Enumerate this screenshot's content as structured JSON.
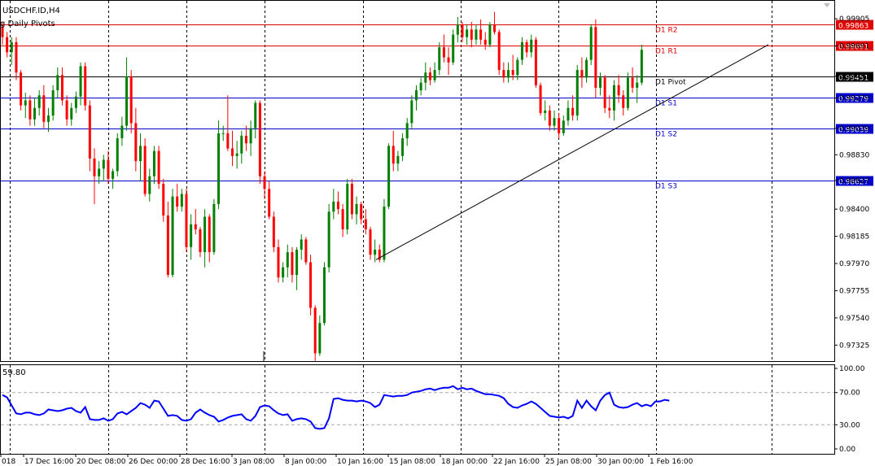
{
  "window": {
    "symbol_title": "USDCHF.ID,H4",
    "indicator_title": "g Daily Pivots",
    "osc_value_label": "59.80"
  },
  "colors": {
    "bull": "#008000",
    "bear": "#ff0000",
    "resistance": "#e00000",
    "support": "#0000cc",
    "pivot": "#000000",
    "oscillator": "#0000ff",
    "grid": "#000000",
    "osc_level": "#aaaaaa"
  },
  "price_axis": {
    "ticks": [
      "0.99905",
      "0.99691",
      "0.99451",
      "0.99279",
      "0.99039",
      "0.98830",
      "0.98627",
      "0.98400",
      "0.98185",
      "0.97970",
      "0.97755",
      "0.97540",
      "0.97325"
    ]
  },
  "osc_axis": {
    "ticks": [
      "100.00",
      "70.00",
      "30.00",
      "0.00"
    ],
    "levels": [
      70,
      30
    ]
  },
  "time_axis": {
    "labels": [
      "018",
      "17 Dec 16:00",
      "20 Dec 08:00",
      "26 Dec 00:00",
      "28 Dec 16:00",
      "3 Jan 08:00",
      "8 Jan 00:00",
      "10 Jan 16:00",
      "15 Jan 08:00",
      "18 Jan 00:00",
      "22 Jan 16:00",
      "25 Jan 08:00",
      "30 Jan 00:00",
      "1 Feb 16:00"
    ]
  },
  "pivot_levels": [
    {
      "name": "D1 R2",
      "value": 0.99863,
      "label": "0.99863",
      "kind": "resistance"
    },
    {
      "name": "D1 R1",
      "value": 0.99691,
      "label": "0.99691",
      "kind": "resistance"
    },
    {
      "name": "D1 Pivot",
      "value": 0.99451,
      "label": "0.99451",
      "kind": "pivot"
    },
    {
      "name": "D1 S1",
      "value": 0.99279,
      "label": "0.99279",
      "kind": "support"
    },
    {
      "name": "D1 S2",
      "value": 0.99039,
      "label": "0.99039",
      "kind": "support"
    },
    {
      "name": "D1 S3",
      "value": 0.98627,
      "label": "0.98627",
      "kind": "support"
    }
  ],
  "trendline": {
    "start_price": 0.98,
    "end_price": 0.997
  },
  "chart_data": {
    "type": "candlestick",
    "title": "USDCHF.ID,H4",
    "ylim": [
      0.97205,
      1.00015
    ],
    "candles": [
      [
        0.99845,
        0.9988,
        0.997,
        0.9976
      ],
      [
        0.9976,
        0.998,
        0.996,
        0.9964
      ],
      [
        0.9964,
        0.9976,
        0.9954,
        0.9972
      ],
      [
        0.9972,
        0.9976,
        0.9942,
        0.9948
      ],
      [
        0.9948,
        0.995,
        0.9918,
        0.9922
      ],
      [
        0.9922,
        0.9932,
        0.9912,
        0.9926
      ],
      [
        0.9926,
        0.993,
        0.9906,
        0.9911
      ],
      [
        0.9911,
        0.9928,
        0.9906,
        0.992
      ],
      [
        0.992,
        0.9934,
        0.9914,
        0.993
      ],
      [
        0.993,
        0.9938,
        0.9904,
        0.9909
      ],
      [
        0.9909,
        0.992,
        0.9901,
        0.9914
      ],
      [
        0.9914,
        0.9938,
        0.991,
        0.9934
      ],
      [
        0.9934,
        0.9952,
        0.9928,
        0.9946
      ],
      [
        0.9946,
        0.9952,
        0.9922,
        0.9926
      ],
      [
        0.9926,
        0.993,
        0.9906,
        0.9911
      ],
      [
        0.9911,
        0.9924,
        0.9906,
        0.992
      ],
      [
        0.992,
        0.9933,
        0.9916,
        0.9929
      ],
      [
        0.9929,
        0.9956,
        0.9922,
        0.9953
      ],
      [
        0.9953,
        0.9956,
        0.9918,
        0.9922
      ],
      [
        0.9922,
        0.9926,
        0.987,
        0.988
      ],
      [
        0.988,
        0.9888,
        0.9844,
        0.9866
      ],
      [
        0.9866,
        0.9878,
        0.986,
        0.9872
      ],
      [
        0.9872,
        0.9883,
        0.9862,
        0.9879
      ],
      [
        0.9879,
        0.9886,
        0.986,
        0.9864
      ],
      [
        0.9864,
        0.9872,
        0.9856,
        0.987
      ],
      [
        0.987,
        0.99,
        0.9866,
        0.9896
      ],
      [
        0.9896,
        0.9913,
        0.989,
        0.9906
      ],
      [
        0.9906,
        0.996,
        0.9902,
        0.9945
      ],
      [
        0.9945,
        0.995,
        0.99,
        0.9908
      ],
      [
        0.9908,
        0.992,
        0.987,
        0.9878
      ],
      [
        0.9878,
        0.99,
        0.9862,
        0.989
      ],
      [
        0.989,
        0.9896,
        0.985,
        0.9852
      ],
      [
        0.9852,
        0.9872,
        0.9846,
        0.9866
      ],
      [
        0.9866,
        0.989,
        0.986,
        0.9886
      ],
      [
        0.9886,
        0.989,
        0.9856,
        0.986
      ],
      [
        0.986,
        0.9864,
        0.983,
        0.9835
      ],
      [
        0.9835,
        0.9846,
        0.9786,
        0.9788
      ],
      [
        0.9788,
        0.9856,
        0.9786,
        0.985
      ],
      [
        0.985,
        0.986,
        0.9838,
        0.9842
      ],
      [
        0.9842,
        0.9856,
        0.9838,
        0.9852
      ],
      [
        0.9852,
        0.9856,
        0.9806,
        0.981
      ],
      [
        0.981,
        0.9836,
        0.98,
        0.9828
      ],
      [
        0.9828,
        0.984,
        0.982,
        0.9824
      ],
      [
        0.9824,
        0.9826,
        0.9802,
        0.9806
      ],
      [
        0.9806,
        0.984,
        0.9794,
        0.9834
      ],
      [
        0.9834,
        0.9836,
        0.9798,
        0.9806
      ],
      [
        0.9806,
        0.9848,
        0.9804,
        0.9844
      ],
      [
        0.9844,
        0.991,
        0.984,
        0.99
      ],
      [
        0.99,
        0.9906,
        0.9894,
        0.99
      ],
      [
        0.99,
        0.993,
        0.9886,
        0.9888
      ],
      [
        0.9888,
        0.9902,
        0.9874,
        0.9882
      ],
      [
        0.9882,
        0.9894,
        0.9872,
        0.9884
      ],
      [
        0.9884,
        0.9902,
        0.9876,
        0.9898
      ],
      [
        0.9898,
        0.9906,
        0.9886,
        0.9892
      ],
      [
        0.9892,
        0.991,
        0.9882,
        0.9904
      ],
      [
        0.9904,
        0.9926,
        0.9896,
        0.9924
      ],
      [
        0.9924,
        0.9926,
        0.986,
        0.9866
      ],
      [
        0.9866,
        0.987,
        0.9848,
        0.9856
      ],
      [
        0.9856,
        0.9862,
        0.9832,
        0.9834
      ],
      [
        0.9834,
        0.9838,
        0.9806,
        0.981
      ],
      [
        0.981,
        0.9816,
        0.9782,
        0.9786
      ],
      [
        0.9786,
        0.9798,
        0.9782,
        0.9794
      ],
      [
        0.9794,
        0.9812,
        0.9786,
        0.9806
      ],
      [
        0.9806,
        0.981,
        0.9782,
        0.9788
      ],
      [
        0.9788,
        0.981,
        0.9776,
        0.9808
      ],
      [
        0.9808,
        0.982,
        0.98,
        0.9816
      ],
      [
        0.9816,
        0.9818,
        0.9796,
        0.9798
      ],
      [
        0.9798,
        0.9804,
        0.9756,
        0.9762
      ],
      [
        0.9762,
        0.9764,
        0.972,
        0.9726
      ],
      [
        0.9726,
        0.9756,
        0.9724,
        0.975
      ],
      [
        0.975,
        0.9798,
        0.9748,
        0.9794
      ],
      [
        0.9794,
        0.9844,
        0.979,
        0.9838
      ],
      [
        0.9838,
        0.9856,
        0.9832,
        0.9846
      ],
      [
        0.9846,
        0.9854,
        0.9836,
        0.984
      ],
      [
        0.984,
        0.9844,
        0.9818,
        0.9824
      ],
      [
        0.9824,
        0.9864,
        0.982,
        0.986
      ],
      [
        0.986,
        0.9864,
        0.9832,
        0.9836
      ],
      [
        0.9836,
        0.985,
        0.9828,
        0.9844
      ],
      [
        0.9844,
        0.9846,
        0.9828,
        0.9832
      ],
      [
        0.9832,
        0.984,
        0.982,
        0.9824
      ],
      [
        0.9824,
        0.9826,
        0.98,
        0.9804
      ],
      [
        0.9804,
        0.9816,
        0.9798,
        0.9808
      ],
      [
        0.9808,
        0.9812,
        0.9798,
        0.98
      ],
      [
        0.98,
        0.9848,
        0.9798,
        0.9842
      ],
      [
        0.9842,
        0.9892,
        0.984,
        0.989
      ],
      [
        0.989,
        0.9902,
        0.987,
        0.9876
      ],
      [
        0.9876,
        0.9886,
        0.987,
        0.9882
      ],
      [
        0.9882,
        0.99,
        0.9878,
        0.9896
      ],
      [
        0.9896,
        0.9912,
        0.989,
        0.9908
      ],
      [
        0.9908,
        0.993,
        0.9904,
        0.9926
      ],
      [
        0.9926,
        0.9938,
        0.9918,
        0.9934
      ],
      [
        0.9934,
        0.9944,
        0.993,
        0.994
      ],
      [
        0.994,
        0.9956,
        0.9934,
        0.9948
      ],
      [
        0.9948,
        0.9952,
        0.9938,
        0.9942
      ],
      [
        0.9942,
        0.9956,
        0.994,
        0.995
      ],
      [
        0.995,
        0.9972,
        0.9946,
        0.9968
      ],
      [
        0.9968,
        0.9978,
        0.9956,
        0.996
      ],
      [
        0.996,
        0.9968,
        0.9946,
        0.9956
      ],
      [
        0.9956,
        0.9982,
        0.9954,
        0.9978
      ],
      [
        0.9978,
        0.9992,
        0.9972,
        0.9986
      ],
      [
        0.9986,
        0.9988,
        0.9972,
        0.9976
      ],
      [
        0.9976,
        0.9986,
        0.997,
        0.9982
      ],
      [
        0.9982,
        0.9988,
        0.9968,
        0.9974
      ],
      [
        0.9974,
        0.9986,
        0.997,
        0.9982
      ],
      [
        0.9982,
        0.999,
        0.997,
        0.9974
      ],
      [
        0.9974,
        0.998,
        0.9966,
        0.997
      ],
      [
        0.997,
        0.9988,
        0.9968,
        0.9986
      ],
      [
        0.9986,
        0.9996,
        0.9978,
        0.998
      ],
      [
        0.998,
        0.9982,
        0.9946,
        0.995
      ],
      [
        0.995,
        0.9956,
        0.994,
        0.9944
      ],
      [
        0.9944,
        0.9956,
        0.994,
        0.995
      ],
      [
        0.995,
        0.9962,
        0.9942,
        0.9946
      ],
      [
        0.9946,
        0.996,
        0.9942,
        0.9958
      ],
      [
        0.9958,
        0.9976,
        0.9954,
        0.9972
      ],
      [
        0.9972,
        0.9974,
        0.996,
        0.9964
      ],
      [
        0.9964,
        0.9978,
        0.996,
        0.9974
      ],
      [
        0.9974,
        0.9976,
        0.9936,
        0.9938
      ],
      [
        0.9938,
        0.994,
        0.9914,
        0.9916
      ],
      [
        0.9916,
        0.9926,
        0.991,
        0.9918
      ],
      [
        0.9918,
        0.9922,
        0.9902,
        0.9906
      ],
      [
        0.9906,
        0.9918,
        0.9902,
        0.9912
      ],
      [
        0.9912,
        0.9916,
        0.9896,
        0.99
      ],
      [
        0.99,
        0.9914,
        0.9898,
        0.991
      ],
      [
        0.991,
        0.9926,
        0.9906,
        0.992
      ],
      [
        0.992,
        0.993,
        0.991,
        0.9914
      ],
      [
        0.9914,
        0.9954,
        0.991,
        0.995
      ],
      [
        0.995,
        0.996,
        0.9936,
        0.9944
      ],
      [
        0.9944,
        0.996,
        0.994,
        0.9958
      ],
      [
        0.9958,
        0.9986,
        0.9954,
        0.9984
      ],
      [
        0.9984,
        0.999,
        0.9928,
        0.9936
      ],
      [
        0.9936,
        0.9948,
        0.993,
        0.9944
      ],
      [
        0.9944,
        0.9946,
        0.9916,
        0.992
      ],
      [
        0.992,
        0.993,
        0.9912,
        0.9918
      ],
      [
        0.9918,
        0.9942,
        0.991,
        0.9938
      ],
      [
        0.9938,
        0.9946,
        0.9924,
        0.993
      ],
      [
        0.993,
        0.9934,
        0.9914,
        0.992
      ],
      [
        0.992,
        0.9948,
        0.9918,
        0.9944
      ],
      [
        0.9944,
        0.9952,
        0.9932,
        0.9936
      ],
      [
        0.9936,
        0.9946,
        0.9924,
        0.994
      ],
      [
        0.994,
        0.997,
        0.9938,
        0.9966
      ]
    ],
    "oscillator": {
      "name": "59.80",
      "values": [
        67,
        64,
        54,
        44,
        43,
        45,
        45,
        43,
        42,
        44,
        49,
        48,
        47,
        48,
        50,
        51,
        47,
        45,
        52,
        37,
        36,
        36,
        38,
        35,
        37,
        44,
        46,
        43,
        47,
        51,
        57,
        55,
        51,
        60,
        59,
        50,
        41,
        42,
        41,
        36,
        35,
        37,
        45,
        49,
        45,
        42,
        40,
        34,
        36,
        39,
        41,
        42,
        43,
        37,
        35,
        41,
        52,
        54,
        53,
        48,
        44,
        42,
        43,
        35,
        37,
        38,
        37,
        34,
        26,
        25,
        26,
        38,
        62,
        63,
        61,
        60,
        60,
        59,
        60,
        59,
        57,
        52,
        55,
        67,
        66,
        65,
        66,
        66,
        67,
        70,
        71,
        72,
        74,
        75,
        73,
        75,
        76,
        76,
        78,
        74,
        76,
        74,
        75,
        72,
        70,
        68,
        68,
        67,
        66,
        63,
        56,
        52,
        51,
        54,
        56,
        59,
        56,
        51,
        46,
        41,
        40,
        39,
        40,
        38,
        41,
        60,
        51,
        60,
        53,
        48,
        60,
        67,
        70,
        55,
        52,
        51,
        52,
        55,
        57,
        53,
        55,
        53,
        59,
        59,
        61,
        60
      ]
    }
  }
}
